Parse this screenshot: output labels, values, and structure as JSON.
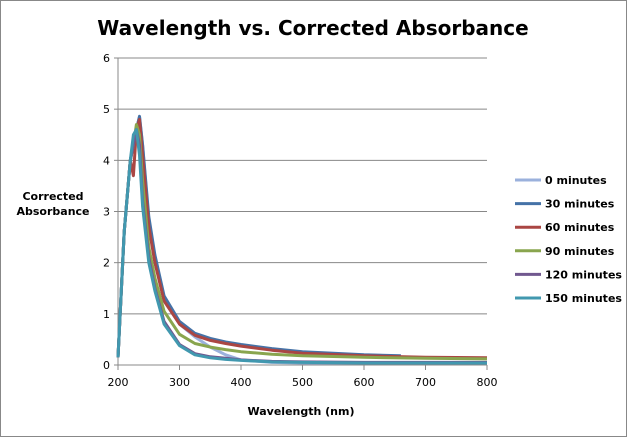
{
  "chart_data": {
    "type": "line",
    "title": "Wavelength vs. Corrected Absorbance",
    "xlabel": "Wavelength (nm)",
    "ylabel": "Corrected Absorbance",
    "xlim": [
      200,
      800
    ],
    "ylim": [
      0,
      6
    ],
    "xticks": [
      200,
      300,
      400,
      500,
      600,
      700,
      800
    ],
    "yticks": [
      0,
      1,
      2,
      3,
      4,
      5,
      6
    ],
    "grid": "horizontal major",
    "legend": "right",
    "x": [
      200,
      210,
      220,
      225,
      230,
      235,
      240,
      250,
      260,
      275,
      300,
      325,
      350,
      375,
      400,
      450,
      500,
      600,
      700,
      800
    ],
    "series": [
      {
        "name": "0 minutes",
        "color": "#9bb1dc",
        "values": [
          0.15,
          2.6,
          4.0,
          4.3,
          4.6,
          4.85,
          4.3,
          2.8,
          2.05,
          1.3,
          0.8,
          0.55,
          0.35,
          0.2,
          0.1,
          0.05,
          0.04,
          0.04,
          0.04,
          0.04
        ]
      },
      {
        "name": "30 minutes",
        "color": "#4572a7",
        "x": [
          200,
          210,
          220,
          225,
          230,
          235,
          240,
          250,
          260,
          275,
          300,
          325,
          350,
          375,
          400,
          450,
          500,
          600,
          660
        ],
        "values": [
          0.15,
          2.6,
          4.0,
          4.3,
          4.6,
          4.86,
          4.3,
          2.9,
          2.15,
          1.35,
          0.85,
          0.62,
          0.52,
          0.45,
          0.4,
          0.32,
          0.26,
          0.2,
          0.18
        ]
      },
      {
        "name": "60 minutes",
        "color": "#aa4643",
        "values": [
          0.15,
          2.6,
          4.0,
          3.7,
          4.6,
          4.8,
          4.1,
          2.7,
          2.0,
          1.25,
          0.8,
          0.58,
          0.48,
          0.42,
          0.37,
          0.29,
          0.23,
          0.18,
          0.15,
          0.14
        ]
      },
      {
        "name": "90 minutes",
        "color": "#89a54e",
        "values": [
          0.15,
          2.6,
          4.0,
          4.3,
          4.7,
          4.5,
          3.6,
          2.3,
          1.7,
          1.05,
          0.6,
          0.42,
          0.35,
          0.3,
          0.26,
          0.21,
          0.18,
          0.15,
          0.13,
          0.12
        ]
      },
      {
        "name": "120 minutes",
        "color": "#71588f",
        "values": [
          0.15,
          2.6,
          4.0,
          4.3,
          4.6,
          4.3,
          3.2,
          2.1,
          1.5,
          0.85,
          0.4,
          0.22,
          0.16,
          0.13,
          0.1,
          0.07,
          0.06,
          0.05,
          0.05,
          0.05
        ]
      },
      {
        "name": "150 minutes",
        "color": "#4198af",
        "values": [
          0.15,
          2.6,
          4.0,
          4.5,
          4.6,
          4.1,
          3.1,
          2.0,
          1.45,
          0.8,
          0.38,
          0.2,
          0.14,
          0.11,
          0.09,
          0.06,
          0.05,
          0.04,
          0.04,
          0.04
        ]
      }
    ]
  }
}
